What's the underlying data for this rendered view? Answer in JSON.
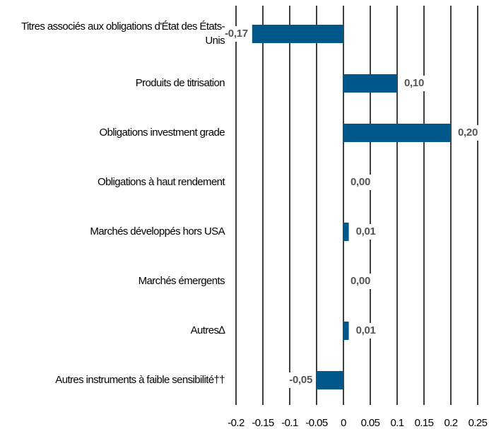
{
  "chart_data": {
    "type": "barh",
    "categories": [
      "Titres associés aux obligations d'État des États-Unis",
      "Produits de titrisation",
      "Obligations investment grade",
      "Obligations à haut rendement",
      "Marchés développés hors USA",
      "Marchés émergents",
      "Autres∆",
      "Autres instruments à faible sensibilité††"
    ],
    "values": [
      -0.17,
      0.1,
      0.2,
      0.0,
      0.01,
      0.0,
      0.01,
      -0.05
    ],
    "value_labels": [
      "-0,17",
      "0,10",
      "0,20",
      "0,00",
      "0,01",
      "0,00",
      "0,01",
      "-0,05"
    ],
    "color": "#00578a",
    "xlim": [
      -0.2,
      0.25
    ],
    "xticks": [
      -0.2,
      -0.15,
      -0.1,
      -0.05,
      0,
      0.05,
      0.1,
      0.15,
      0.2,
      0.25
    ],
    "grid": true
  }
}
